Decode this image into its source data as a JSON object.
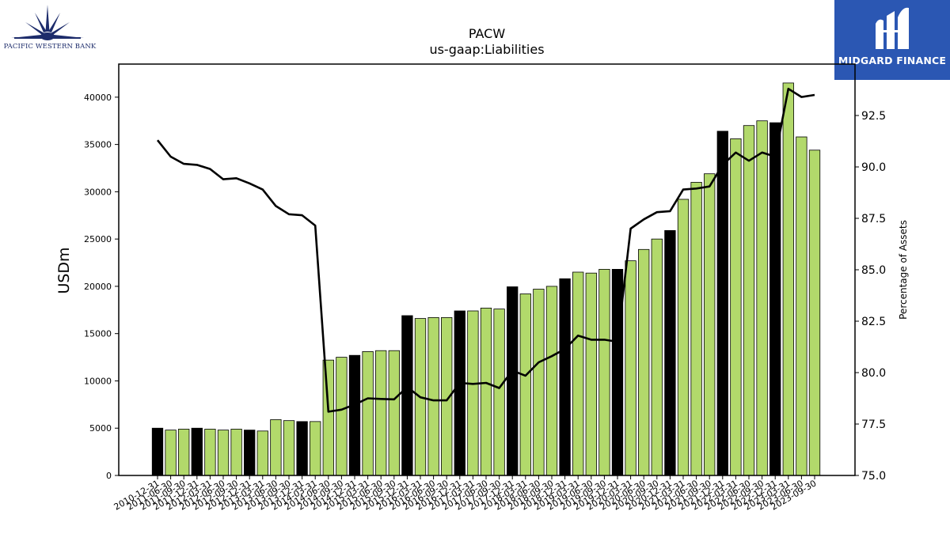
{
  "branding": {
    "left_logo_text": "PACIFIC WESTERN BANK",
    "right_logo_text": "MIDGARD FINANCE",
    "right_logo_bg": "#2b57b3",
    "left_logo_color": "#1d2c6b"
  },
  "chart_data": {
    "type": "bar",
    "title": "PACW",
    "subtitle": "us-gaap:Liabilities",
    "ylabel": "USDm",
    "y2label": "Percentage of Assets",
    "ylim": [
      0,
      43500
    ],
    "y2lim": [
      75.0,
      95.0
    ],
    "yticks": [
      0,
      5000,
      10000,
      15000,
      20000,
      25000,
      30000,
      35000,
      40000
    ],
    "y2ticks": [
      "75.0",
      "77.5",
      "80.0",
      "82.5",
      "85.0",
      "87.5",
      "90.0",
      "92.5"
    ],
    "bar_colors": {
      "quarter": "#b2d96b",
      "year_end": "#000000"
    },
    "line_color": "#000000",
    "categories": [
      "2010-12-31",
      "2011-06-30",
      "2011-09-30",
      "2011-12-31",
      "2012-03-31",
      "2012-06-30",
      "2012-09-30",
      "2012-12-31",
      "2013-03-31",
      "2013-06-30",
      "2013-09-30",
      "2013-12-31",
      "2014-03-31",
      "2014-06-30",
      "2014-09-30",
      "2014-12-31",
      "2015-03-31",
      "2015-06-30",
      "2015-09-30",
      "2015-12-31",
      "2016-03-31",
      "2016-06-30",
      "2016-09-30",
      "2016-12-31",
      "2017-03-31",
      "2017-06-30",
      "2017-09-30",
      "2017-12-31",
      "2018-03-31",
      "2018-06-30",
      "2018-09-30",
      "2018-12-31",
      "2019-03-31",
      "2019-06-30",
      "2019-09-30",
      "2019-12-31",
      "2020-03-31",
      "2020-06-30",
      "2020-09-30",
      "2020-12-31",
      "2021-03-31",
      "2021-06-30",
      "2021-09-30",
      "2021-12-31",
      "2022-03-31",
      "2022-06-30",
      "2022-09-30",
      "2022-12-31",
      "2023-03-31",
      "2023-06-30",
      "2023-09-30"
    ],
    "series": [
      {
        "kind": "bar",
        "values": [
          5000,
          4800,
          4900,
          5000,
          4900,
          4800,
          4900,
          4800,
          4700,
          5900,
          5800,
          5700,
          5700,
          12200,
          12500,
          12700,
          13100,
          13200,
          13200,
          16900,
          16600,
          16700,
          16700,
          17400,
          17400,
          17700,
          17600,
          19950,
          19200,
          19700,
          20000,
          20800,
          21500,
          21400,
          21800,
          21800,
          22700,
          23900,
          25000,
          25900,
          29200,
          31000,
          31900,
          36400,
          35600,
          37000,
          37500,
          37300,
          41500,
          35800,
          34400
        ],
        "year_end": [
          true,
          false,
          false,
          true,
          false,
          false,
          false,
          true,
          false,
          false,
          false,
          true,
          false,
          false,
          false,
          true,
          false,
          false,
          false,
          true,
          false,
          false,
          false,
          true,
          false,
          false,
          false,
          true,
          false,
          false,
          false,
          true,
          false,
          false,
          false,
          true,
          false,
          false,
          false,
          true,
          false,
          false,
          false,
          true,
          false,
          false,
          false,
          true,
          false,
          false,
          false
        ]
      },
      {
        "kind": "line",
        "axis": "right",
        "values": [
          91.3,
          90.5,
          90.15,
          90.1,
          89.9,
          89.4,
          89.45,
          89.2,
          88.9,
          88.1,
          87.7,
          87.65,
          87.15,
          78.1,
          78.2,
          78.45,
          78.75,
          78.72,
          78.7,
          79.3,
          78.8,
          78.65,
          78.65,
          79.5,
          79.45,
          79.5,
          79.25,
          80.1,
          79.85,
          80.5,
          80.8,
          81.15,
          81.8,
          81.6,
          81.6,
          81.5,
          87.0,
          87.45,
          87.8,
          87.85,
          88.9,
          88.95,
          89.05,
          90.1,
          90.7,
          90.3,
          90.7,
          90.5,
          93.8,
          93.4,
          93.5
        ]
      }
    ]
  }
}
